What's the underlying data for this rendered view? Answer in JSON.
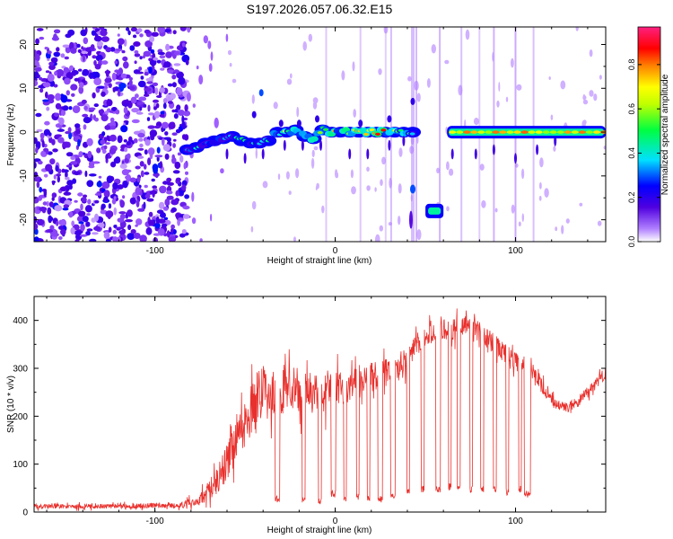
{
  "title": "S197.2026.057.06.32.E15",
  "colors": {
    "line": "#e8302c",
    "cmap": [
      "#ffffff",
      "#a060ff",
      "#5000e0",
      "#0000ff",
      "#00e0ff",
      "#00ff40",
      "#c0ff00",
      "#ffff00",
      "#ff8000",
      "#ff0000",
      "#ff2080"
    ]
  },
  "chart_data": [
    {
      "type": "heatmap",
      "name": "spectrogram",
      "xlabel": "Height of straight line (km)",
      "ylabel": "Frequency (Hz)",
      "xlim": [
        -167,
        150
      ],
      "ylim": [
        -25,
        24
      ],
      "xticks": [
        -100,
        0,
        100
      ],
      "xtick_labels": [
        "-100",
        "0",
        "100"
      ],
      "yticks": [
        -20,
        -10,
        0,
        10,
        20
      ],
      "ytick_labels": [
        "-20",
        "-10",
        "0",
        "10",
        "20"
      ],
      "colorbar": {
        "label": "Normalized spectral amplitude",
        "range": [
          0,
          0.97
        ],
        "ticks": [
          0.0,
          0.2,
          0.4,
          0.6,
          0.8
        ],
        "tick_labels": [
          "0.0",
          "0.2",
          "0.4",
          "0.6",
          "0.8"
        ]
      },
      "noise_region": {
        "x": [
          -167,
          -82
        ],
        "mean_amplitude": 0.12
      },
      "main_track": {
        "comment": "frequency (Hz) vs height (km) of the main spectral line; amplitude 0-1",
        "x": [
          -82,
          -77,
          -72,
          -67,
          -62,
          -57,
          -52,
          -47,
          -42,
          -37,
          -32,
          -27,
          -22,
          -17,
          -12,
          -7,
          -2,
          3,
          8,
          13,
          18,
          23,
          28,
          33,
          38,
          43
        ],
        "freq": [
          -4,
          -3.5,
          -2.5,
          -2,
          -1.5,
          -1,
          -2,
          -2.5,
          -2.5,
          -2,
          0,
          0,
          0.5,
          -1,
          -1.5,
          0.5,
          0,
          0,
          0,
          0,
          0,
          0,
          0,
          0,
          0,
          0
        ],
        "amplitude": [
          0.35,
          0.5,
          0.45,
          0.5,
          0.55,
          0.5,
          0.55,
          0.6,
          0.55,
          0.6,
          0.7,
          0.8,
          0.75,
          0.7,
          0.8,
          0.85,
          0.9,
          0.85,
          0.9,
          0.8,
          0.85,
          0.95,
          0.9,
          0.85,
          0.8,
          0.6
        ]
      },
      "shifted_segment": {
        "x": [
          50,
          60
        ],
        "freq": -18,
        "amplitude": 0.45
      },
      "stable_track": {
        "x": [
          62,
          150
        ],
        "freq": 0,
        "amplitude": 0.85
      },
      "gaps_km": [
        [
          44,
          49
        ],
        [
          61,
          62
        ]
      ]
    },
    {
      "type": "line",
      "name": "snr",
      "xlabel": "Height of straight line (km)",
      "ylabel": "SNR (10 * v/v)",
      "xlim": [
        -167,
        150
      ],
      "ylim": [
        0,
        450
      ],
      "xticks": [
        -100,
        0,
        100
      ],
      "xtick_labels": [
        "-100",
        "0",
        "100"
      ],
      "yticks": [
        0,
        100,
        200,
        300,
        400
      ],
      "ytick_labels": [
        "0",
        "100",
        "200",
        "300",
        "400"
      ],
      "envelope": {
        "x": [
          -167,
          -120,
          -85,
          -75,
          -65,
          -55,
          -48,
          -42,
          -35,
          -25,
          -15,
          -5,
          5,
          15,
          25,
          35,
          45,
          55,
          65,
          75,
          85,
          95,
          105,
          110,
          115,
          120,
          125,
          130,
          135,
          140,
          145,
          150
        ],
        "y": [
          12,
          12,
          15,
          25,
          70,
          140,
          200,
          250,
          240,
          260,
          250,
          250,
          260,
          270,
          290,
          300,
          350,
          380,
          380,
          390,
          360,
          330,
          300,
          300,
          260,
          230,
          220,
          220,
          230,
          250,
          270,
          290
        ],
        "noise_amplitude": [
          6,
          6,
          8,
          14,
          40,
          55,
          60,
          70,
          60,
          60,
          55,
          50,
          45,
          40,
          40,
          35,
          30,
          28,
          28,
          28,
          28,
          25,
          22,
          20,
          18,
          15,
          14,
          14,
          15,
          15,
          16,
          18
        ]
      },
      "dropouts": [
        {
          "x": [
            -33,
            -31
          ],
          "y": 20
        },
        {
          "x": [
            -18,
            -17
          ],
          "y": 20
        },
        {
          "x": [
            -9,
            -8
          ],
          "y": 15
        },
        {
          "x": [
            -2,
            0
          ],
          "y": 30
        },
        {
          "x": [
            5,
            6
          ],
          "y": 20
        },
        {
          "x": [
            12,
            13
          ],
          "y": 25
        },
        {
          "x": [
            18,
            19
          ],
          "y": 20
        },
        {
          "x": [
            24,
            26
          ],
          "y": 20
        },
        {
          "x": [
            31,
            33
          ],
          "y": 25
        },
        {
          "x": [
            40,
            41
          ],
          "y": 35
        },
        {
          "x": [
            48,
            49
          ],
          "y": 40
        },
        {
          "x": [
            56,
            58
          ],
          "y": 40
        },
        {
          "x": [
            63,
            64
          ],
          "y": 45
        },
        {
          "x": [
            68,
            69
          ],
          "y": 40
        },
        {
          "x": [
            75,
            76
          ],
          "y": 40
        },
        {
          "x": [
            81,
            82
          ],
          "y": 40
        },
        {
          "x": [
            88,
            89
          ],
          "y": 40
        },
        {
          "x": [
            95,
            96
          ],
          "y": 35
        },
        {
          "x": [
            102,
            103
          ],
          "y": 40
        },
        {
          "x": [
            105,
            108
          ],
          "y": 30
        }
      ]
    }
  ]
}
